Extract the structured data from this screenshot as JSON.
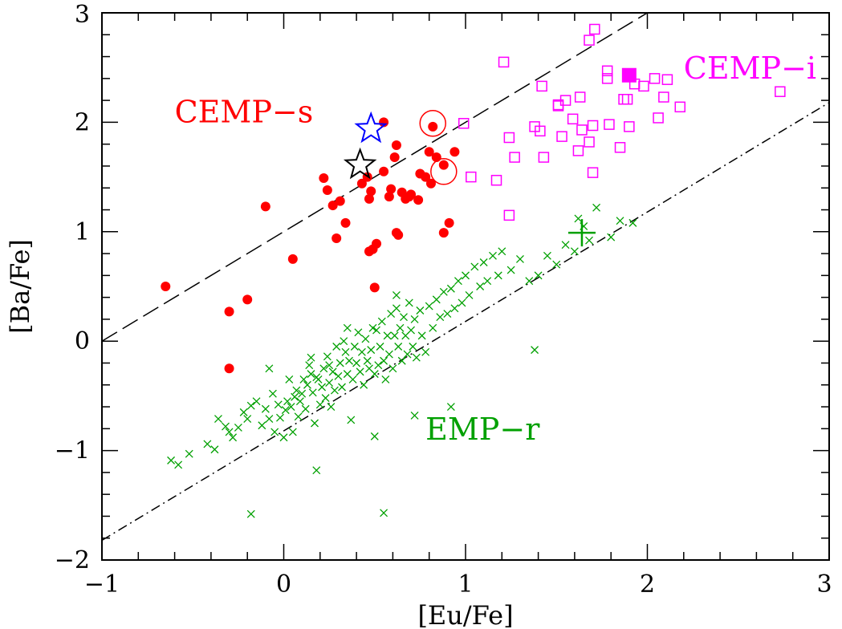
{
  "chart_data": {
    "type": "scatter",
    "xlabel": "[Eu/Fe]",
    "ylabel": "[Ba/Fe]",
    "xlim": [
      -1,
      3
    ],
    "ylim": [
      -2,
      3
    ],
    "x_ticks": [
      -1,
      0,
      1,
      2,
      3
    ],
    "x_tick_labels": [
      "−1",
      "0",
      "1",
      "2",
      "3"
    ],
    "y_ticks": [
      -2,
      -1,
      0,
      1,
      2,
      3
    ],
    "y_tick_labels": [
      "−2",
      "−1",
      "0",
      "1",
      "2",
      "3"
    ],
    "grid": false,
    "legend": "none",
    "colors": {
      "cemp_s": "#ff0000",
      "cemp_i": "#ff00ff",
      "emp_r": "#00a000",
      "blue_star": "#0000ff",
      "black_star": "#000000"
    },
    "annotations": [
      {
        "text": "CEMP−s",
        "x": -0.6,
        "y": 2.0,
        "color": "#ff0000"
      },
      {
        "text": "CEMP−i",
        "x": 2.2,
        "y": 2.4,
        "color": "#ff00ff"
      },
      {
        "text": "EMP−r",
        "x": 0.78,
        "y": -0.9,
        "color": "#00a000"
      }
    ],
    "lines": [
      {
        "style": "dashed",
        "x": [
          -1,
          2.0
        ],
        "y": [
          0.0,
          3.0
        ]
      },
      {
        "style": "dashdot",
        "x": [
          -1,
          3.0
        ],
        "y": [
          -1.82,
          2.18
        ]
      }
    ],
    "series": [
      {
        "marker": "filled-circle",
        "color": "#ff0000",
        "points": [
          [
            -0.65,
            0.5
          ],
          [
            -0.3,
            0.27
          ],
          [
            -0.3,
            -0.25
          ],
          [
            -0.2,
            0.38
          ],
          [
            -0.1,
            1.23
          ],
          [
            0.05,
            0.75
          ],
          [
            0.22,
            1.49
          ],
          [
            0.24,
            1.38
          ],
          [
            0.27,
            1.24
          ],
          [
            0.29,
            0.94
          ],
          [
            0.31,
            1.28
          ],
          [
            0.34,
            1.08
          ],
          [
            0.43,
            1.44
          ],
          [
            0.46,
            1.5
          ],
          [
            0.47,
            1.3
          ],
          [
            0.48,
            1.37
          ],
          [
            0.47,
            0.82
          ],
          [
            0.49,
            0.84
          ],
          [
            0.51,
            0.89
          ],
          [
            0.5,
            0.49
          ],
          [
            0.55,
            2.0
          ],
          [
            0.55,
            1.55
          ],
          [
            0.58,
            1.32
          ],
          [
            0.59,
            1.39
          ],
          [
            0.62,
            1.79
          ],
          [
            0.62,
            0.99
          ],
          [
            0.63,
            0.97
          ],
          [
            0.61,
            1.68
          ],
          [
            0.65,
            1.36
          ],
          [
            0.67,
            1.3
          ],
          [
            0.69,
            1.32
          ],
          [
            0.7,
            1.34
          ],
          [
            0.74,
            1.29
          ],
          [
            0.75,
            1.53
          ],
          [
            0.78,
            1.5
          ],
          [
            0.8,
            1.73
          ],
          [
            0.81,
            1.44
          ],
          [
            0.82,
            1.96
          ],
          [
            0.84,
            1.68
          ],
          [
            0.88,
            1.61
          ],
          [
            0.88,
            0.99
          ],
          [
            0.91,
            1.08
          ],
          [
            0.94,
            1.73
          ]
        ]
      },
      {
        "marker": "open-circle-large",
        "color": "#ff0000",
        "points": [
          [
            0.82,
            1.99
          ],
          [
            0.88,
            1.55
          ]
        ]
      },
      {
        "marker": "open-square",
        "color": "#ff00ff",
        "points": [
          [
            0.99,
            1.99
          ],
          [
            1.03,
            1.5
          ],
          [
            1.17,
            1.47
          ],
          [
            1.21,
            2.55
          ],
          [
            1.24,
            1.86
          ],
          [
            1.24,
            1.15
          ],
          [
            1.27,
            1.68
          ],
          [
            1.38,
            1.96
          ],
          [
            1.41,
            1.92
          ],
          [
            1.42,
            2.33
          ],
          [
            1.43,
            1.68
          ],
          [
            1.51,
            2.16
          ],
          [
            1.51,
            2.15
          ],
          [
            1.53,
            1.87
          ],
          [
            1.55,
            2.2
          ],
          [
            1.59,
            2.03
          ],
          [
            1.62,
            1.74
          ],
          [
            1.63,
            2.23
          ],
          [
            1.64,
            1.93
          ],
          [
            1.68,
            1.82
          ],
          [
            1.68,
            2.75
          ],
          [
            1.7,
            1.54
          ],
          [
            1.7,
            1.97
          ],
          [
            1.71,
            2.85
          ],
          [
            1.78,
            2.4
          ],
          [
            1.78,
            2.47
          ],
          [
            1.79,
            1.98
          ],
          [
            1.85,
            1.77
          ],
          [
            1.87,
            2.21
          ],
          [
            1.89,
            2.21
          ],
          [
            1.9,
            1.96
          ],
          [
            1.93,
            2.35
          ],
          [
            1.98,
            2.33
          ],
          [
            2.04,
            2.4
          ],
          [
            2.06,
            2.04
          ],
          [
            2.09,
            2.23
          ],
          [
            2.11,
            2.39
          ],
          [
            2.18,
            2.14
          ],
          [
            2.73,
            2.28
          ]
        ]
      },
      {
        "marker": "filled-square",
        "color": "#ff00ff",
        "points": [
          [
            1.9,
            2.43
          ]
        ]
      },
      {
        "marker": "open-star",
        "color": "#0000ff",
        "points": [
          [
            0.48,
            1.94
          ]
        ]
      },
      {
        "marker": "open-star",
        "color": "#000000",
        "points": [
          [
            0.42,
            1.61
          ]
        ]
      },
      {
        "marker": "plus-large",
        "color": "#00a000",
        "points": [
          [
            1.64,
            0.99
          ]
        ]
      },
      {
        "marker": "cross",
        "color": "#00a000",
        "points": [
          [
            -0.62,
            -1.09
          ],
          [
            -0.58,
            -1.13
          ],
          [
            -0.52,
            -1.03
          ],
          [
            -0.42,
            -0.94
          ],
          [
            -0.38,
            -0.99
          ],
          [
            -0.36,
            -0.71
          ],
          [
            -0.32,
            -0.78
          ],
          [
            -0.3,
            -0.83
          ],
          [
            -0.28,
            -0.88
          ],
          [
            -0.25,
            -0.79
          ],
          [
            -0.22,
            -0.65
          ],
          [
            -0.2,
            -0.71
          ],
          [
            -0.18,
            -0.59
          ],
          [
            -0.15,
            -0.55
          ],
          [
            -0.12,
            -0.77
          ],
          [
            -0.1,
            -0.62
          ],
          [
            -0.08,
            -0.71
          ],
          [
            -0.06,
            -0.48
          ],
          [
            -0.05,
            -0.83
          ],
          [
            -0.03,
            -0.58
          ],
          [
            -0.02,
            -0.7
          ],
          [
            0.0,
            -0.88
          ],
          [
            0.01,
            -0.63
          ],
          [
            0.02,
            -0.55
          ],
          [
            0.03,
            -0.35
          ],
          [
            0.04,
            -0.6
          ],
          [
            0.05,
            -0.83
          ],
          [
            0.06,
            -0.51
          ],
          [
            0.07,
            -0.45
          ],
          [
            0.08,
            -0.69
          ],
          [
            0.09,
            -0.55
          ],
          [
            0.1,
            -0.48
          ],
          [
            0.11,
            -0.35
          ],
          [
            0.12,
            -0.62
          ],
          [
            0.13,
            -0.4
          ],
          [
            0.14,
            -0.22
          ],
          [
            0.15,
            -0.3
          ],
          [
            0.16,
            -0.47
          ],
          [
            0.17,
            -0.75
          ],
          [
            0.18,
            -0.33
          ],
          [
            0.19,
            -0.35
          ],
          [
            0.2,
            -0.58
          ],
          [
            0.21,
            -0.42
          ],
          [
            0.22,
            -0.25
          ],
          [
            0.23,
            -0.52
          ],
          [
            0.24,
            -0.14
          ],
          [
            0.25,
            -0.38
          ],
          [
            0.26,
            -0.6
          ],
          [
            0.27,
            -0.28
          ],
          [
            0.28,
            -0.45
          ],
          [
            0.29,
            -0.05
          ],
          [
            0.3,
            -0.32
          ],
          [
            0.31,
            -0.2
          ],
          [
            0.32,
            -0.42
          ],
          [
            0.33,
            0.0
          ],
          [
            0.34,
            -0.1
          ],
          [
            0.35,
            -0.3
          ],
          [
            0.36,
            -0.18
          ],
          [
            0.37,
            -0.72
          ],
          [
            0.38,
            -0.35
          ],
          [
            0.39,
            -0.05
          ],
          [
            0.4,
            -0.2
          ],
          [
            0.41,
            0.08
          ],
          [
            0.42,
            -0.28
          ],
          [
            0.43,
            -0.1
          ],
          [
            0.44,
            -0.4
          ],
          [
            0.45,
            0.02
          ],
          [
            0.46,
            -0.18
          ],
          [
            0.47,
            -0.25
          ],
          [
            0.48,
            -0.08
          ],
          [
            0.49,
            0.12
          ],
          [
            0.5,
            -0.3
          ],
          [
            0.51,
            0.1
          ],
          [
            0.52,
            -0.22
          ],
          [
            0.53,
            -0.05
          ],
          [
            0.54,
            0.18
          ],
          [
            0.55,
            -0.18
          ],
          [
            0.56,
            -0.35
          ],
          [
            0.57,
            0.05
          ],
          [
            0.58,
            -0.12
          ],
          [
            0.59,
            0.25
          ],
          [
            0.6,
            -0.25
          ],
          [
            0.61,
            0.05
          ],
          [
            0.62,
            0.3
          ],
          [
            0.63,
            -0.05
          ],
          [
            0.64,
            0.12
          ],
          [
            0.65,
            -0.18
          ],
          [
            0.66,
            0.22
          ],
          [
            0.67,
            0.05
          ],
          [
            0.68,
            -0.12
          ],
          [
            0.69,
            0.35
          ],
          [
            0.7,
            0.1
          ],
          [
            0.71,
            -0.05
          ],
          [
            0.72,
            0.2
          ],
          [
            0.73,
            -0.15
          ],
          [
            0.75,
            0.28
          ],
          [
            0.76,
            0.05
          ],
          [
            0.78,
            -0.1
          ],
          [
            0.8,
            0.32
          ],
          [
            0.82,
            0.12
          ],
          [
            0.84,
            0.38
          ],
          [
            0.86,
            0.22
          ],
          [
            0.88,
            0.45
          ],
          [
            0.9,
            0.25
          ],
          [
            0.92,
            0.48
          ],
          [
            0.94,
            0.3
          ],
          [
            0.96,
            0.55
          ],
          [
            0.98,
            0.35
          ],
          [
            1.0,
            0.6
          ],
          [
            1.02,
            0.42
          ],
          [
            1.05,
            0.68
          ],
          [
            1.08,
            0.5
          ],
          [
            1.1,
            0.72
          ],
          [
            1.12,
            0.55
          ],
          [
            1.15,
            0.78
          ],
          [
            1.18,
            0.6
          ],
          [
            1.2,
            0.82
          ],
          [
            1.25,
            0.65
          ],
          [
            1.3,
            0.75
          ],
          [
            1.35,
            0.55
          ],
          [
            1.38,
            -0.08
          ],
          [
            1.4,
            0.6
          ],
          [
            1.45,
            0.78
          ],
          [
            1.5,
            0.7
          ],
          [
            1.55,
            0.88
          ],
          [
            1.6,
            0.82
          ],
          [
            1.62,
            1.12
          ],
          [
            1.65,
            1.05
          ],
          [
            1.68,
            0.92
          ],
          [
            1.72,
            1.22
          ],
          [
            1.8,
            0.95
          ],
          [
            1.85,
            1.1
          ],
          [
            1.92,
            1.08
          ],
          [
            0.18,
            -1.18
          ],
          [
            -0.18,
            -1.58
          ],
          [
            0.55,
            -1.57
          ],
          [
            0.5,
            -0.87
          ],
          [
            0.72,
            -0.68
          ],
          [
            0.92,
            -0.6
          ],
          [
            0.25,
            -0.22
          ],
          [
            0.15,
            -0.15
          ],
          [
            -0.08,
            -0.25
          ],
          [
            0.35,
            0.12
          ],
          [
            0.62,
            0.42
          ]
        ]
      }
    ]
  }
}
